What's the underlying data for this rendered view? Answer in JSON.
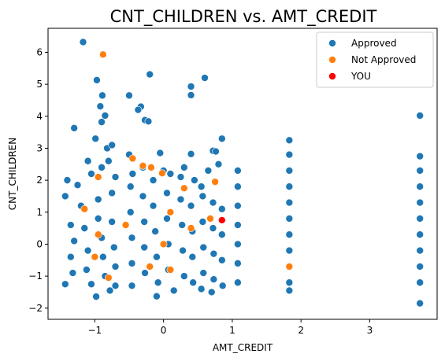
{
  "chart_data": {
    "type": "scatter",
    "title": "CNT_CHILDREN vs. AMT_CREDIT",
    "xlabel": "AMT_CREDIT",
    "ylabel": "CNT_CHILDREN",
    "xlim": [
      -1.68,
      3.98
    ],
    "ylim": [
      -2.35,
      6.75
    ],
    "xticks": [
      -1,
      0,
      1,
      2,
      3
    ],
    "xtick_labels": [
      "−1",
      "0",
      "1",
      "2",
      "3"
    ],
    "yticks": [
      -2,
      -1,
      0,
      1,
      2,
      3,
      4,
      5,
      6
    ],
    "ytick_labels": [
      "−2",
      "−1",
      "0",
      "1",
      "2",
      "3",
      "4",
      "5",
      "6"
    ],
    "legend_position": "top-right",
    "colors": {
      "approved": "#1f77b4",
      "not_approved": "#ff7f0e",
      "you": "#ff0000"
    },
    "series": [
      {
        "name": "Approved",
        "color": "#1f77b4",
        "points": [
          [
            -1.17,
            6.32
          ],
          [
            -0.97,
            5.13
          ],
          [
            -0.89,
            4.65
          ],
          [
            -0.92,
            4.31
          ],
          [
            -0.85,
            4.02
          ],
          [
            -0.9,
            3.82
          ],
          [
            -0.5,
            4.65
          ],
          [
            -0.33,
            4.3
          ],
          [
            -0.37,
            4.2
          ],
          [
            -0.27,
            3.88
          ],
          [
            -0.22,
            3.84
          ],
          [
            -0.2,
            5.31
          ],
          [
            0.4,
            4.93
          ],
          [
            0.4,
            4.66
          ],
          [
            0.6,
            5.2
          ],
          [
            -1.3,
            3.63
          ],
          [
            -0.99,
            3.3
          ],
          [
            -0.82,
            3.0
          ],
          [
            -0.75,
            3.1
          ],
          [
            -0.05,
            2.85
          ],
          [
            0.4,
            2.82
          ],
          [
            0.72,
            2.92
          ],
          [
            0.76,
            2.9
          ],
          [
            0.85,
            3.3
          ],
          [
            3.73,
            4.02
          ],
          [
            3.73,
            -1.85
          ],
          [
            -0.78,
            -1.45
          ],
          [
            -0.98,
            -1.64
          ],
          [
            -0.1,
            -1.63
          ],
          [
            0.15,
            -1.45
          ],
          [
            0.55,
            -1.4
          ],
          [
            0.7,
            -1.5
          ],
          [
            -1.43,
            -1.25
          ],
          [
            -1.4,
            2.0
          ],
          [
            -1.43,
            1.5
          ],
          [
            -1.25,
            1.85
          ],
          [
            -1.1,
            2.6
          ],
          [
            -1.05,
            2.2
          ],
          [
            -0.9,
            2.4
          ],
          [
            -0.8,
            2.6
          ],
          [
            -0.7,
            2.1
          ],
          [
            -0.5,
            2.8
          ],
          [
            -0.45,
            2.2
          ],
          [
            -0.3,
            2.4
          ],
          [
            -0.15,
            2.0
          ],
          [
            0.0,
            2.3
          ],
          [
            0.1,
            2.2
          ],
          [
            0.25,
            2.1
          ],
          [
            0.3,
            2.4
          ],
          [
            0.45,
            2.0
          ],
          [
            0.55,
            1.8
          ],
          [
            0.65,
            2.3
          ],
          [
            0.8,
            2.5
          ],
          [
            1.08,
            2.3
          ],
          [
            1.08,
            1.8
          ],
          [
            1.08,
            1.2
          ],
          [
            1.08,
            0.6
          ],
          [
            1.08,
            0.0
          ],
          [
            1.08,
            -0.6
          ],
          [
            1.08,
            -1.2
          ],
          [
            1.83,
            3.25
          ],
          [
            1.83,
            2.8
          ],
          [
            1.83,
            2.3
          ],
          [
            1.83,
            1.8
          ],
          [
            1.83,
            1.3
          ],
          [
            1.83,
            0.8
          ],
          [
            1.83,
            0.3
          ],
          [
            1.83,
            -0.2
          ],
          [
            1.83,
            -0.7
          ],
          [
            1.83,
            -1.2
          ],
          [
            1.83,
            -1.45
          ],
          [
            3.73,
            2.75
          ],
          [
            3.73,
            2.3
          ],
          [
            3.73,
            1.8
          ],
          [
            3.73,
            1.3
          ],
          [
            3.73,
            0.8
          ],
          [
            3.73,
            0.3
          ],
          [
            3.73,
            -0.2
          ],
          [
            3.73,
            -0.7
          ],
          [
            3.73,
            -1.2
          ],
          [
            -1.35,
            0.6
          ],
          [
            -1.3,
            0.1
          ],
          [
            -1.35,
            -0.4
          ],
          [
            -1.32,
            -0.9
          ],
          [
            -1.2,
            1.2
          ],
          [
            -1.15,
            0.5
          ],
          [
            -1.1,
            -0.2
          ],
          [
            -1.12,
            -0.8
          ],
          [
            -1.05,
            -1.25
          ],
          [
            -0.95,
            1.4
          ],
          [
            -0.95,
            0.8
          ],
          [
            -0.9,
            0.2
          ],
          [
            -0.88,
            -0.4
          ],
          [
            -0.85,
            -1.0
          ],
          [
            -0.75,
            1.6
          ],
          [
            -0.75,
            0.7
          ],
          [
            -0.72,
            -0.1
          ],
          [
            -0.7,
            -0.7
          ],
          [
            -0.7,
            -1.3
          ],
          [
            -0.48,
            1.8
          ],
          [
            -0.48,
            1.0
          ],
          [
            -0.46,
            0.2
          ],
          [
            -0.46,
            -0.6
          ],
          [
            -0.46,
            -1.3
          ],
          [
            -0.3,
            1.5
          ],
          [
            -0.28,
            0.7
          ],
          [
            -0.28,
            -0.1
          ],
          [
            -0.27,
            -0.9
          ],
          [
            -0.15,
            1.2
          ],
          [
            -0.12,
            0.4
          ],
          [
            -0.1,
            -0.4
          ],
          [
            -0.08,
            -1.2
          ],
          [
            0.05,
            1.6
          ],
          [
            0.05,
            0.8
          ],
          [
            0.07,
            0.0
          ],
          [
            0.07,
            -0.8
          ],
          [
            0.25,
            1.4
          ],
          [
            0.27,
            0.6
          ],
          [
            0.28,
            -0.2
          ],
          [
            0.3,
            -1.0
          ],
          [
            0.4,
            1.2
          ],
          [
            0.42,
            0.4
          ],
          [
            0.42,
            -0.4
          ],
          [
            0.43,
            -1.2
          ],
          [
            0.57,
            1.5
          ],
          [
            0.57,
            0.7
          ],
          [
            0.58,
            -0.1
          ],
          [
            0.58,
            -0.9
          ],
          [
            0.72,
            1.3
          ],
          [
            0.72,
            0.5
          ],
          [
            0.73,
            -0.3
          ],
          [
            0.73,
            -1.1
          ],
          [
            0.85,
            1.1
          ],
          [
            0.85,
            0.3
          ],
          [
            0.85,
            -0.5
          ],
          [
            0.86,
            -1.3
          ]
        ]
      },
      {
        "name": "Not Approved",
        "color": "#ff7f0e",
        "points": [
          [
            -0.88,
            5.93
          ],
          [
            -0.45,
            2.68
          ],
          [
            -0.3,
            2.45
          ],
          [
            -0.18,
            2.4
          ],
          [
            -0.02,
            2.22
          ],
          [
            0.3,
            1.75
          ],
          [
            0.75,
            1.95
          ],
          [
            -1.15,
            1.1
          ],
          [
            -0.95,
            2.1
          ],
          [
            -0.95,
            0.3
          ],
          [
            -1.0,
            -0.4
          ],
          [
            -0.55,
            0.6
          ],
          [
            -0.2,
            -0.7
          ],
          [
            0.1,
            1.0
          ],
          [
            0.1,
            -0.8
          ],
          [
            0.4,
            0.5
          ],
          [
            0.68,
            0.8
          ],
          [
            1.83,
            -0.7
          ],
          [
            -0.8,
            -1.05
          ],
          [
            0.0,
            0.0
          ]
        ]
      },
      {
        "name": "YOU",
        "color": "#ff0000",
        "points": [
          [
            0.85,
            0.75
          ]
        ]
      }
    ]
  }
}
